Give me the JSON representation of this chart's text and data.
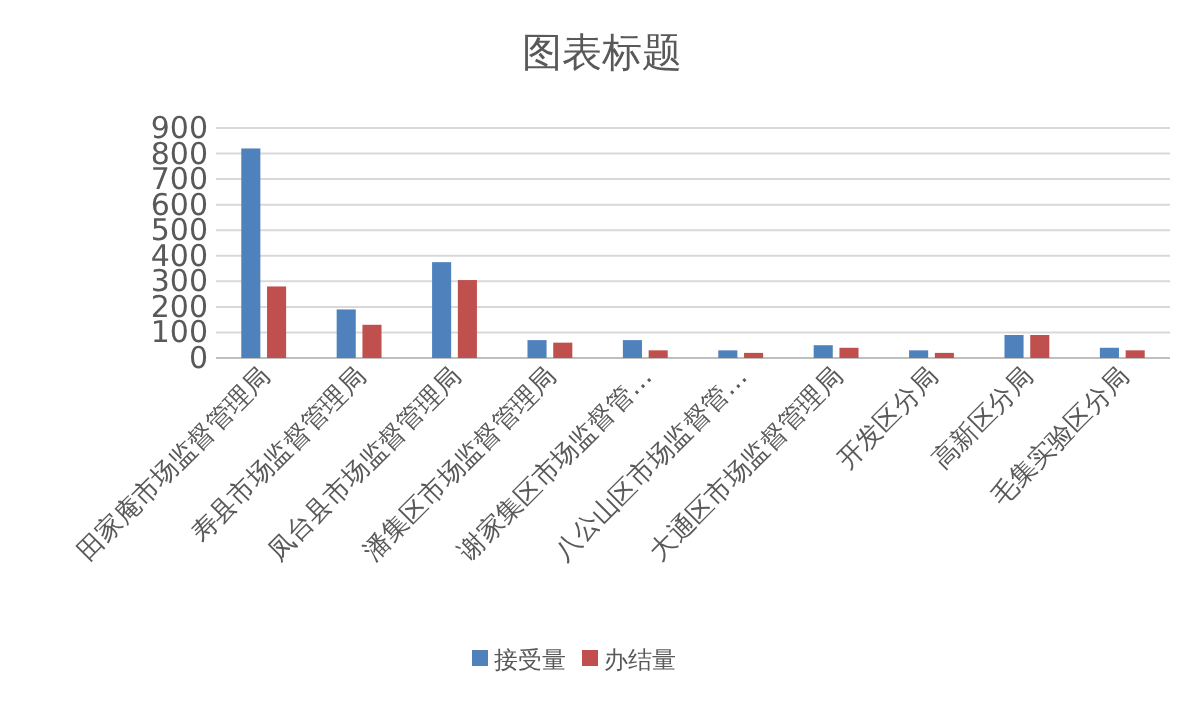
{
  "chart_data": {
    "type": "bar",
    "title": "图表标题",
    "categories": [
      "田家庵市场监督管理局",
      "寿县市场监督管理局",
      "凤台县市场监督管理局",
      "潘集区市场监督管理局",
      "谢家集区市场监督管…",
      "八公山区市场监督管…",
      "大通区市场监督管理局",
      "开发区分局",
      "高新区分局",
      "毛集实验区分局"
    ],
    "series": [
      {
        "name": "接受量",
        "color": "#4f81bd",
        "values": [
          820,
          190,
          375,
          70,
          70,
          30,
          50,
          30,
          90,
          40
        ]
      },
      {
        "name": "办结量",
        "color": "#c0504d",
        "values": [
          280,
          130,
          305,
          60,
          30,
          20,
          40,
          20,
          90,
          30
        ]
      }
    ],
    "ylim": [
      0,
      900
    ],
    "yticks": [
      0,
      100,
      200,
      300,
      400,
      500,
      600,
      700,
      800,
      900
    ],
    "grid": "y",
    "legend": "bottom"
  }
}
